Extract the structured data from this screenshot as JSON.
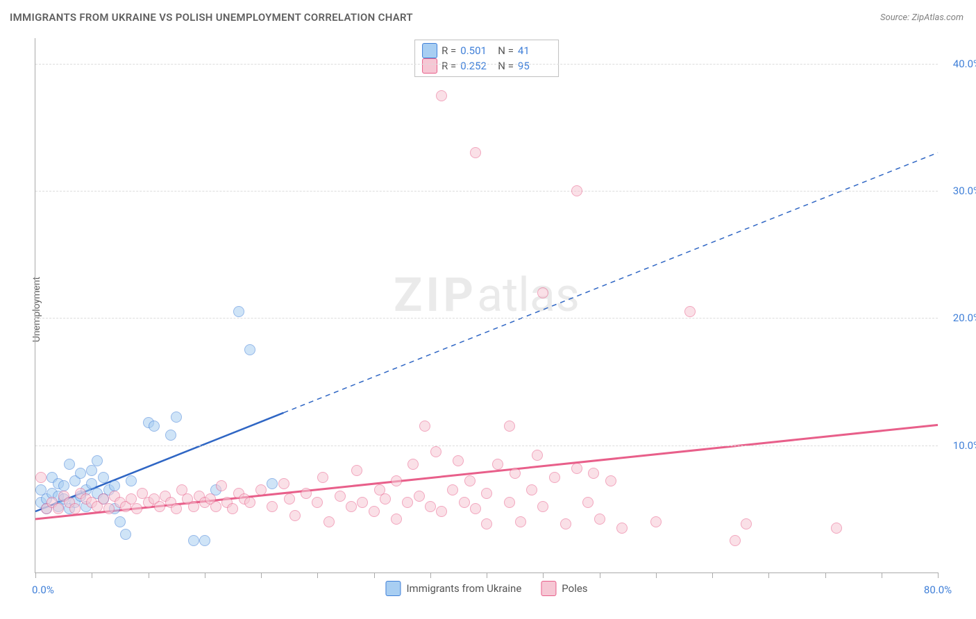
{
  "title": "IMMIGRANTS FROM UKRAINE VS POLISH UNEMPLOYMENT CORRELATION CHART",
  "source_label": "Source:",
  "source_value": "ZipAtlas.com",
  "ylabel": "Unemployment",
  "watermark_bold": "ZIP",
  "watermark_rest": "atlas",
  "chart": {
    "type": "scatter",
    "xlim": [
      0,
      80
    ],
    "ylim": [
      0,
      42
    ],
    "x_ticks": [
      0,
      5,
      10,
      15,
      20,
      25,
      30,
      35,
      40,
      45,
      50,
      55,
      60,
      65,
      70,
      75,
      80
    ],
    "x_tick_labels": {
      "0": "0.0%",
      "80": "80.0%"
    },
    "y_gridlines": [
      10,
      20,
      30,
      40
    ],
    "y_tick_labels": {
      "10": "10.0%",
      "20": "20.0%",
      "30": "30.0%",
      "40": "40.0%"
    },
    "background_color": "#ffffff",
    "grid_color": "#dcdcdc",
    "axis_color": "#aaaaaa",
    "tick_label_color": "#3f7fd8",
    "point_radius": 8,
    "point_border_width": 1.5,
    "series": [
      {
        "name": "Immigrants from Ukraine",
        "fill_color": "#a8cef2",
        "stroke_color": "#3f7fd8",
        "fill_opacity": 0.55,
        "R": "0.501",
        "N": "41",
        "trend": {
          "x1": 0,
          "y1": 4.8,
          "x2": 80,
          "y2": 33.0,
          "solid_until_x": 22,
          "color": "#2f66c4",
          "width": 2.5,
          "dash": "7 6"
        },
        "points": [
          [
            0.5,
            5.5
          ],
          [
            0.5,
            6.5
          ],
          [
            1,
            5
          ],
          [
            1,
            5.8
          ],
          [
            1.5,
            6.2
          ],
          [
            1.5,
            7.5
          ],
          [
            2,
            5.2
          ],
          [
            2,
            6
          ],
          [
            2,
            7
          ],
          [
            2.5,
            5.8
          ],
          [
            2.5,
            6.8
          ],
          [
            3,
            5
          ],
          [
            3,
            8.5
          ],
          [
            3.5,
            5.5
          ],
          [
            3.5,
            7.2
          ],
          [
            4,
            6
          ],
          [
            4,
            7.8
          ],
          [
            4.5,
            5.2
          ],
          [
            4.5,
            6.5
          ],
          [
            5,
            7
          ],
          [
            5,
            8
          ],
          [
            5.5,
            6.2
          ],
          [
            5.5,
            8.8
          ],
          [
            6,
            5.8
          ],
          [
            6,
            7.5
          ],
          [
            6.5,
            6.5
          ],
          [
            7,
            5
          ],
          [
            7,
            6.8
          ],
          [
            7.5,
            4
          ],
          [
            8,
            3
          ],
          [
            8.5,
            7.2
          ],
          [
            10,
            11.8
          ],
          [
            10.5,
            11.5
          ],
          [
            12,
            10.8
          ],
          [
            12.5,
            12.2
          ],
          [
            14,
            2.5
          ],
          [
            15,
            2.5
          ],
          [
            16,
            6.5
          ],
          [
            18,
            20.5
          ],
          [
            19,
            17.5
          ],
          [
            21,
            7
          ]
        ]
      },
      {
        "name": "Poles",
        "fill_color": "#f6c7d4",
        "stroke_color": "#e85f8a",
        "fill_opacity": 0.55,
        "R": "0.252",
        "N": "95",
        "trend": {
          "x1": 0,
          "y1": 4.2,
          "x2": 80,
          "y2": 11.6,
          "solid_until_x": 80,
          "color": "#e85f8a",
          "width": 3,
          "dash": null
        },
        "points": [
          [
            0.5,
            7.5
          ],
          [
            1,
            5
          ],
          [
            1.5,
            5.5
          ],
          [
            2,
            5
          ],
          [
            2.5,
            6
          ],
          [
            3,
            5.5
          ],
          [
            3.5,
            5
          ],
          [
            4,
            6.2
          ],
          [
            4.5,
            5.8
          ],
          [
            5,
            5.5
          ],
          [
            5.5,
            5.2
          ],
          [
            6,
            5.8
          ],
          [
            6.5,
            5
          ],
          [
            7,
            6
          ],
          [
            7.5,
            5.5
          ],
          [
            8,
            5.2
          ],
          [
            8.5,
            5.8
          ],
          [
            9,
            5
          ],
          [
            9.5,
            6.2
          ],
          [
            10,
            5.5
          ],
          [
            10.5,
            5.8
          ],
          [
            11,
            5.2
          ],
          [
            11.5,
            6
          ],
          [
            12,
            5.5
          ],
          [
            12.5,
            5
          ],
          [
            13,
            6.5
          ],
          [
            13.5,
            5.8
          ],
          [
            14,
            5.2
          ],
          [
            14.5,
            6
          ],
          [
            15,
            5.5
          ],
          [
            15.5,
            5.8
          ],
          [
            16,
            5.2
          ],
          [
            16.5,
            6.8
          ],
          [
            17,
            5.5
          ],
          [
            17.5,
            5
          ],
          [
            18,
            6.2
          ],
          [
            18.5,
            5.8
          ],
          [
            19,
            5.5
          ],
          [
            20,
            6.5
          ],
          [
            21,
            5.2
          ],
          [
            22,
            7
          ],
          [
            22.5,
            5.8
          ],
          [
            23,
            4.5
          ],
          [
            24,
            6.2
          ],
          [
            25,
            5.5
          ],
          [
            25.5,
            7.5
          ],
          [
            26,
            4
          ],
          [
            27,
            6
          ],
          [
            28,
            5.2
          ],
          [
            28.5,
            8
          ],
          [
            29,
            5.5
          ],
          [
            30,
            4.8
          ],
          [
            30.5,
            6.5
          ],
          [
            31,
            5.8
          ],
          [
            32,
            4.2
          ],
          [
            32,
            7.2
          ],
          [
            33,
            5.5
          ],
          [
            33.5,
            8.5
          ],
          [
            34,
            6
          ],
          [
            34.5,
            11.5
          ],
          [
            35,
            5.2
          ],
          [
            35.5,
            9.5
          ],
          [
            36,
            4.8
          ],
          [
            36,
            37.5
          ],
          [
            37,
            6.5
          ],
          [
            37.5,
            8.8
          ],
          [
            38,
            5.5
          ],
          [
            38.5,
            7.2
          ],
          [
            39,
            5
          ],
          [
            39,
            33
          ],
          [
            40,
            3.8
          ],
          [
            40,
            6.2
          ],
          [
            41,
            8.5
          ],
          [
            42,
            5.5
          ],
          [
            42,
            11.5
          ],
          [
            42.5,
            7.8
          ],
          [
            43,
            4
          ],
          [
            44,
            6.5
          ],
          [
            44.5,
            9.2
          ],
          [
            45,
            5.2
          ],
          [
            45,
            22
          ],
          [
            46,
            7.5
          ],
          [
            47,
            3.8
          ],
          [
            48,
            8.2
          ],
          [
            48,
            30
          ],
          [
            49,
            5.5
          ],
          [
            49.5,
            7.8
          ],
          [
            50,
            4.2
          ],
          [
            51,
            7.2
          ],
          [
            52,
            3.5
          ],
          [
            55,
            4
          ],
          [
            58,
            20.5
          ],
          [
            62,
            2.5
          ],
          [
            63,
            3.8
          ],
          [
            71,
            3.5
          ]
        ]
      }
    ]
  },
  "legend": {
    "R_label": "R =",
    "N_label": "N ="
  }
}
